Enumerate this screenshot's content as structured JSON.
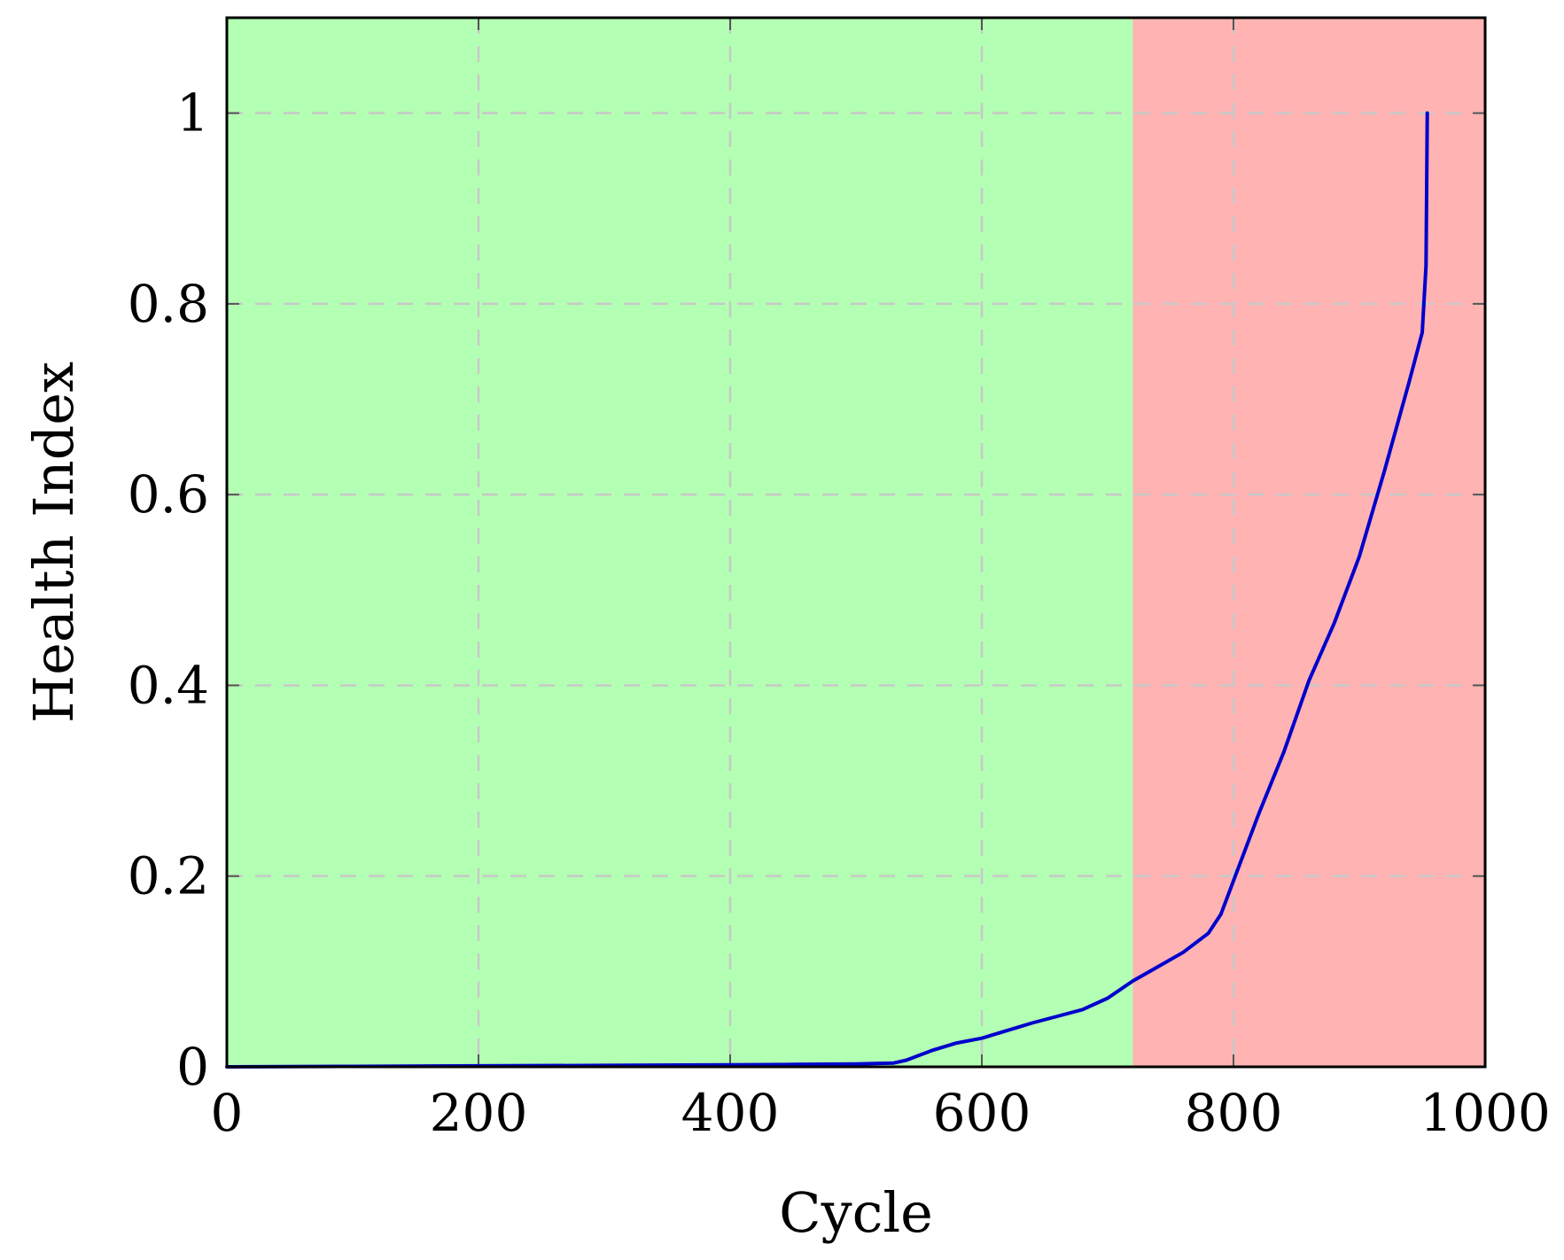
{
  "chart_data": {
    "type": "line",
    "xlabel": "Cycle",
    "ylabel": "Health Index",
    "xlim": [
      0,
      1000
    ],
    "ylim": [
      0,
      1.1
    ],
    "x_ticks": [
      0,
      200,
      400,
      600,
      800,
      1000
    ],
    "y_ticks": [
      0,
      0.2,
      0.4,
      0.6,
      0.8,
      1
    ],
    "x_tick_labels": [
      "0",
      "200",
      "400",
      "600",
      "800",
      "1000"
    ],
    "y_tick_labels": [
      "0",
      "0.2",
      "0.4",
      "0.6",
      "0.8",
      "1"
    ],
    "grid": true,
    "regions": [
      {
        "x_start": 0,
        "x_end": 720,
        "color": "#b3ffb3"
      },
      {
        "x_start": 720,
        "x_end": 1000,
        "color": "#ffb3b3"
      }
    ],
    "series": [
      {
        "color": "#0000cc",
        "x": [
          0,
          100,
          200,
          300,
          400,
          450,
          500,
          530,
          540,
          560,
          580,
          600,
          620,
          640,
          660,
          680,
          700,
          720,
          740,
          760,
          780,
          790,
          800,
          810,
          820,
          840,
          860,
          880,
          900,
          920,
          940,
          950,
          953,
          954
        ],
        "y": [
          0,
          0.0005,
          0.001,
          0.0015,
          0.002,
          0.0025,
          0.003,
          0.004,
          0.007,
          0.017,
          0.025,
          0.03,
          0.038,
          0.046,
          0.053,
          0.06,
          0.072,
          0.09,
          0.105,
          0.12,
          0.14,
          0.16,
          0.195,
          0.23,
          0.265,
          0.33,
          0.405,
          0.465,
          0.535,
          0.625,
          0.72,
          0.77,
          0.84,
          1.0
        ]
      }
    ]
  }
}
